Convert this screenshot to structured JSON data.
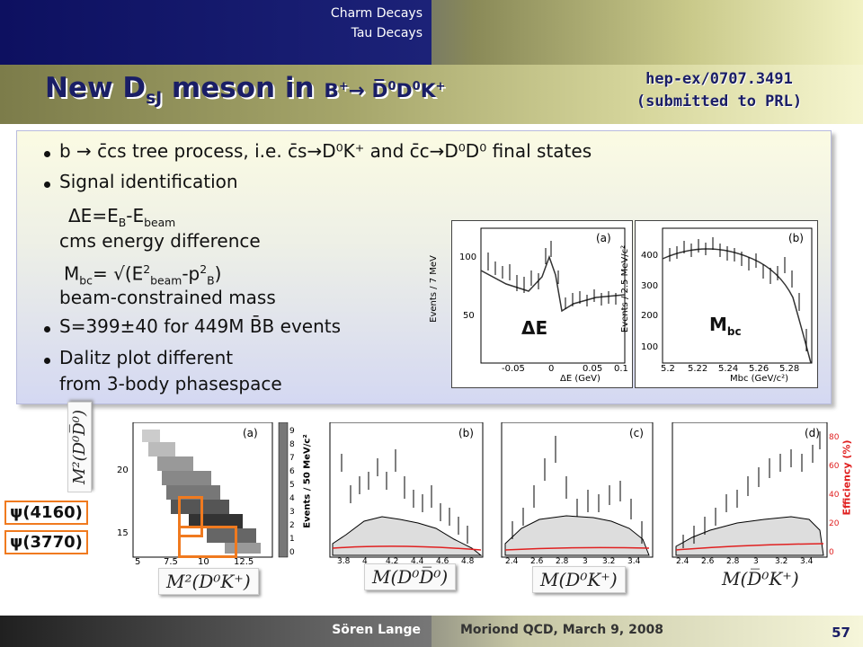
{
  "nav": {
    "item1": "Charm Decays",
    "item2": "Tau Decays"
  },
  "title": {
    "main": "New D",
    "sub_sJ": "sJ",
    "meson_in": " meson in ",
    "B": "B",
    "Bsup": "+",
    "arrow": "→ ",
    "Dbar": "D̅",
    "D0sup1": "0",
    "D": "D",
    "D0sup2": "0",
    "K": "K",
    "Ksup": "+"
  },
  "reference": {
    "line1": "hep-ex/0707.3491",
    "line2": "(submitted to PRL)"
  },
  "bullets": {
    "b1": "b → c̄cs tree process, i.e. c̄s→D⁰K⁺ and c̄c→D⁰D⁰ final states",
    "b2": "Signal identification",
    "de_eq": "ΔE=E",
    "de_B": "B",
    "de_minus": "-E",
    "de_beam": "beam",
    "de_desc": "cms energy difference",
    "mbc_M": "M",
    "mbc_bc": "bc",
    "mbc_eq": "= √(E",
    "mbc_2a": "2",
    "mbc_beam": "beam",
    "mbc_minus": "-p",
    "mbc_2b": "2",
    "mbc_B": "B",
    "mbc_close": ")",
    "mbc_desc": "beam-constrained mass",
    "b3": "S=399±40  for 449M B̄B events",
    "b4_line1": "Dalitz plot different",
    "b4_line2": "from 3-body phasespace"
  },
  "plot_de": {
    "label": "ΔE",
    "tag": "(a)",
    "ylabel": "Events / 7 MeV",
    "xlabel": "ΔE (GeV)",
    "yticks": [
      "50",
      "100"
    ],
    "xticks": [
      "-0.05",
      "0",
      "0.05",
      "0.1"
    ]
  },
  "plot_mbc": {
    "label_M": "M",
    "label_bc": "bc",
    "tag": "(b)",
    "ylabel": "Events / 2.5 MeV/c²",
    "xlabel": "Mbc (GeV/c²)",
    "yticks": [
      "100",
      "200",
      "300",
      "400"
    ],
    "xticks": [
      "5.2",
      "5.22",
      "5.24",
      "5.26",
      "5.28"
    ]
  },
  "dalitz": {
    "tag": "(a)",
    "yticks": [
      "15",
      "20"
    ],
    "xticks": [
      "5",
      "7.5",
      "10",
      "12.5"
    ],
    "zticks": [
      "0",
      "1",
      "2",
      "3",
      "4",
      "5",
      "6",
      "7",
      "8",
      "9"
    ]
  },
  "panel_b": {
    "tag": "(b)",
    "ylabel": "Events / 50 MeV/c²",
    "xticks": [
      "3.8",
      "4",
      "4.2",
      "4.4",
      "4.6",
      "4.8"
    ]
  },
  "panel_c": {
    "tag": "(c)",
    "xticks": [
      "2.4",
      "2.6",
      "2.8",
      "3",
      "3.2",
      "3.4"
    ]
  },
  "panel_d": {
    "tag": "(d)",
    "ylabel_right": "Efficiency (%)",
    "xticks": [
      "2.4",
      "2.6",
      "2.8",
      "3",
      "3.2",
      "3.4"
    ],
    "yticks_right": [
      "0",
      "20",
      "40",
      "60",
      "80"
    ]
  },
  "formulas": {
    "f_y": "M²(D⁰D̅⁰)",
    "f1": "M²(D⁰K⁺)",
    "f2": "M(D⁰D̅⁰)",
    "f3": "M(D⁰K⁺)",
    "f4": "M(D̅⁰K⁺)"
  },
  "psi": {
    "p1": "ψ(4160)",
    "p2": "ψ(3770)"
  },
  "footer": {
    "presenter": "Sören Lange",
    "conference": "Moriond QCD, March 9, 2008",
    "page": "57"
  },
  "colors": {
    "accent_navy": "#1a1e66",
    "highlight_orange": "#f07a1f",
    "fit_red": "#e02020"
  }
}
